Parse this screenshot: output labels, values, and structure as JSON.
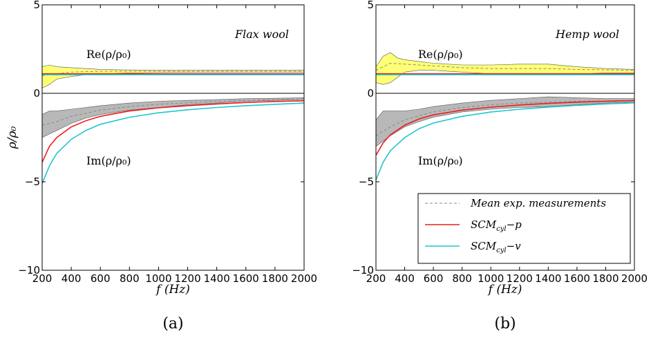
{
  "chart_data": [
    {
      "type": "line",
      "panel_label": "(a)",
      "annotation": "Flax wool",
      "re_label": "Re(ρ/ρ₀)",
      "im_label": "Im(ρ/ρ₀)",
      "xlabel": "f (Hz)",
      "ylabel": "ρ/ρ₀",
      "xlim": [
        200,
        2000
      ],
      "ylim": [
        -10,
        5
      ],
      "xticks": [
        "200",
        "400",
        "600",
        "800",
        "1000",
        "1200",
        "1400",
        "1600",
        "1800",
        "2000"
      ],
      "yticks": [
        "5",
        "0",
        "−5",
        "−10"
      ],
      "zero_line": true,
      "legend": null,
      "real_part": {
        "measurement_band": {
          "color": "#ffff66",
          "x": [
            200,
            250,
            300,
            400,
            500,
            600,
            800,
            1000,
            1400,
            2000
          ],
          "upper": [
            1.5,
            1.6,
            1.5,
            1.45,
            1.4,
            1.35,
            1.32,
            1.3,
            1.3,
            1.3
          ],
          "lower": [
            0.3,
            0.5,
            0.8,
            0.95,
            1.05,
            1.1,
            1.15,
            1.18,
            1.2,
            1.2
          ]
        },
        "series": [
          {
            "name": "Mean exp. measurements",
            "color": "#888888",
            "style": "dashed",
            "x": [
              200,
              300,
              400,
              600,
              800,
              1000,
              1400,
              2000
            ],
            "values": [
              1.0,
              1.1,
              1.2,
              1.25,
              1.25,
              1.25,
              1.25,
              1.25
            ]
          },
          {
            "name": "SCMcyl−p",
            "color": "#ee1c1c",
            "style": "solid",
            "x": [
              200,
              400,
              800,
              1200,
              2000
            ],
            "values": [
              1.1,
              1.1,
              1.1,
              1.1,
              1.1
            ]
          },
          {
            "name": "SCMcyl−v",
            "color": "#1fc7cc",
            "style": "solid",
            "x": [
              200,
              400,
              800,
              1200,
              2000
            ],
            "values": [
              1.05,
              1.05,
              1.05,
              1.05,
              1.05
            ]
          }
        ]
      },
      "imag_part": {
        "measurement_band": {
          "color": "#b0b0b0",
          "x": [
            200,
            250,
            300,
            400,
            500,
            600,
            800,
            1000,
            1200,
            1400,
            1600,
            1800,
            2000
          ],
          "upper": [
            -1.2,
            -1.0,
            -1.0,
            -0.9,
            -0.8,
            -0.7,
            -0.55,
            -0.45,
            -0.4,
            -0.35,
            -0.3,
            -0.28,
            -0.25
          ],
          "lower": [
            -2.5,
            -2.3,
            -2.1,
            -1.7,
            -1.4,
            -1.2,
            -0.95,
            -0.8,
            -0.65,
            -0.55,
            -0.45,
            -0.4,
            -0.35
          ]
        },
        "series": [
          {
            "name": "Mean exp. measurements",
            "color": "#888888",
            "style": "dashed",
            "x": [
              200,
              300,
              400,
              600,
              800,
              1000,
              1400,
              2000
            ],
            "values": [
              -1.8,
              -1.6,
              -1.3,
              -0.95,
              -0.75,
              -0.62,
              -0.45,
              -0.32
            ]
          },
          {
            "name": "SCMcyl−p",
            "color": "#ee1c1c",
            "style": "solid",
            "x": [
              200,
              250,
              300,
              400,
              500,
              600,
              800,
              1000,
              1200,
              1400,
              1600,
              1800,
              2000
            ],
            "values": [
              -3.9,
              -3.0,
              -2.5,
              -1.9,
              -1.55,
              -1.3,
              -1.0,
              -0.82,
              -0.7,
              -0.6,
              -0.52,
              -0.46,
              -0.42
            ]
          },
          {
            "name": "SCMcyl−v",
            "color": "#1fc7cc",
            "style": "solid",
            "x": [
              200,
              250,
              300,
              400,
              500,
              600,
              800,
              1000,
              1200,
              1400,
              1600,
              1800,
              2000
            ],
            "values": [
              -5.1,
              -4.1,
              -3.4,
              -2.6,
              -2.1,
              -1.75,
              -1.35,
              -1.1,
              -0.93,
              -0.8,
              -0.7,
              -0.62,
              -0.55
            ]
          }
        ]
      }
    },
    {
      "type": "line",
      "panel_label": "(b)",
      "annotation": "Hemp wool",
      "re_label": "Re(ρ/ρ₀)",
      "im_label": "Im(ρ/ρ₀)",
      "xlabel": "f (Hz)",
      "ylabel": "",
      "xlim": [
        200,
        2000
      ],
      "ylim": [
        -10,
        5
      ],
      "xticks": [
        "200",
        "400",
        "600",
        "800",
        "1000",
        "1200",
        "1400",
        "1600",
        "1800",
        "2000"
      ],
      "yticks": [
        "5",
        "0",
        "−5",
        "−10"
      ],
      "zero_line": true,
      "legend": {
        "position": "lower-right",
        "entries": [
          {
            "label": "Mean exp. measurements",
            "color": "#888888",
            "style": "dashed"
          },
          {
            "label": "SCM",
            "sub": "cyl",
            "suffix": "−p",
            "color": "#ee1c1c",
            "style": "solid"
          },
          {
            "label": "SCM",
            "sub": "cyl",
            "suffix": "−v",
            "color": "#1fc7cc",
            "style": "solid"
          }
        ]
      },
      "real_part": {
        "measurement_band": {
          "color": "#ffff66",
          "x": [
            200,
            250,
            300,
            350,
            400,
            500,
            600,
            800,
            1000,
            1200,
            1400,
            1600,
            1800,
            2000
          ],
          "upper": [
            1.5,
            2.1,
            2.3,
            2.0,
            1.9,
            1.8,
            1.7,
            1.6,
            1.6,
            1.65,
            1.65,
            1.5,
            1.4,
            1.35
          ],
          "lower": [
            0.6,
            0.5,
            0.6,
            0.9,
            1.2,
            1.3,
            1.3,
            1.2,
            1.1,
            1.05,
            1.05,
            1.1,
            1.15,
            1.15
          ]
        },
        "series": [
          {
            "name": "Mean exp. measurements",
            "color": "#888888",
            "style": "dashed",
            "x": [
              200,
              300,
              400,
              600,
              800,
              1000,
              1200,
              1400,
              1600,
              2000
            ],
            "values": [
              1.3,
              1.7,
              1.65,
              1.55,
              1.45,
              1.4,
              1.4,
              1.4,
              1.35,
              1.3
            ]
          },
          {
            "name": "SCMcyl−p",
            "color": "#ee1c1c",
            "style": "solid",
            "x": [
              200,
              400,
              800,
              1200,
              2000
            ],
            "values": [
              1.1,
              1.1,
              1.1,
              1.1,
              1.1
            ]
          },
          {
            "name": "SCMcyl−v",
            "color": "#1fc7cc",
            "style": "solid",
            "x": [
              200,
              400,
              800,
              1200,
              2000
            ],
            "values": [
              1.05,
              1.05,
              1.05,
              1.05,
              1.05
            ]
          }
        ]
      },
      "imag_part": {
        "measurement_band": {
          "color": "#b0b0b0",
          "x": [
            200,
            250,
            300,
            400,
            500,
            600,
            800,
            1000,
            1200,
            1400,
            1600,
            1800,
            2000
          ],
          "upper": [
            -1.5,
            -1.0,
            -1.0,
            -1.0,
            -0.9,
            -0.75,
            -0.55,
            -0.4,
            -0.3,
            -0.2,
            -0.25,
            -0.3,
            -0.3
          ],
          "lower": [
            -3.0,
            -2.7,
            -2.4,
            -1.9,
            -1.6,
            -1.35,
            -1.05,
            -0.9,
            -0.8,
            -0.75,
            -0.65,
            -0.55,
            -0.5
          ]
        },
        "series": [
          {
            "name": "Mean exp. measurements",
            "color": "#888888",
            "style": "dashed",
            "x": [
              200,
              300,
              400,
              600,
              800,
              1000,
              1200,
              1400,
              1600,
              2000
            ],
            "values": [
              -2.4,
              -1.9,
              -1.5,
              -1.05,
              -0.8,
              -0.65,
              -0.55,
              -0.5,
              -0.45,
              -0.4
            ]
          },
          {
            "name": "SCMcyl−p",
            "color": "#ee1c1c",
            "style": "solid",
            "x": [
              200,
              250,
              300,
              400,
              500,
              600,
              800,
              1000,
              1200,
              1400,
              1600,
              1800,
              2000
            ],
            "values": [
              -3.5,
              -2.8,
              -2.35,
              -1.8,
              -1.45,
              -1.22,
              -0.95,
              -0.78,
              -0.66,
              -0.57,
              -0.5,
              -0.45,
              -0.41
            ]
          },
          {
            "name": "SCMcyl−v",
            "color": "#1fc7cc",
            "style": "solid",
            "x": [
              200,
              250,
              300,
              400,
              500,
              600,
              800,
              1000,
              1200,
              1400,
              1600,
              1800,
              2000
            ],
            "values": [
              -4.9,
              -3.9,
              -3.25,
              -2.5,
              -2.0,
              -1.68,
              -1.3,
              -1.06,
              -0.9,
              -0.78,
              -0.68,
              -0.6,
              -0.54
            ]
          }
        ]
      }
    }
  ]
}
